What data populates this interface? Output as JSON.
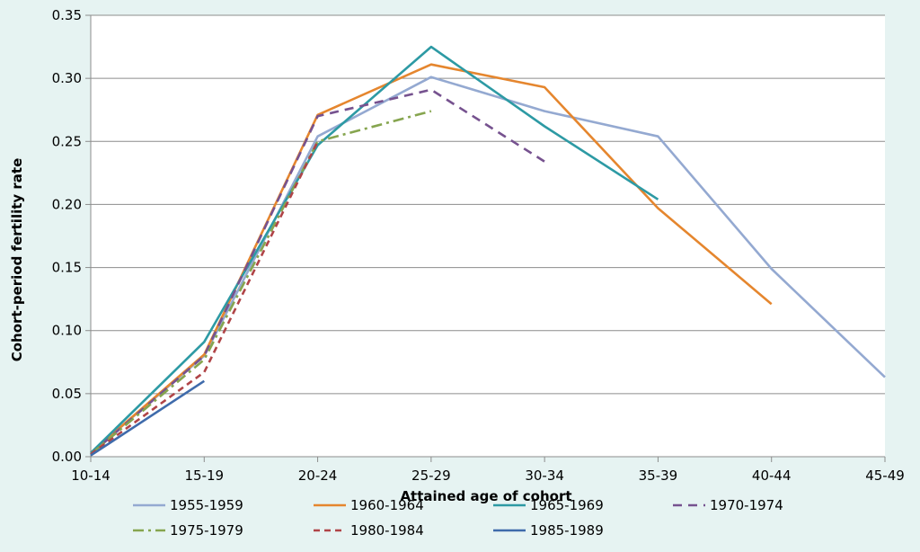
{
  "chart_data": {
    "type": "line",
    "xlabel": "Attained age of cohort",
    "ylabel": "Cohort-period fertility rate",
    "categories": [
      "10-14",
      "15-19",
      "20-24",
      "25-29",
      "30-34",
      "35-39",
      "40-44",
      "45-49"
    ],
    "ylim": [
      0,
      0.35
    ],
    "yticks": [
      "0.00",
      "0.05",
      "0.10",
      "0.15",
      "0.20",
      "0.25",
      "0.30",
      "0.35"
    ],
    "grid": "horizontal",
    "legend_position": "bottom",
    "series": [
      {
        "name": "1955-1959",
        "color": "#94a9d1",
        "dash": "solid",
        "values": [
          0.003,
          0.08,
          0.254,
          0.301,
          0.274,
          0.254,
          0.149,
          0.063
        ]
      },
      {
        "name": "1960-1964",
        "color": "#e5862e",
        "dash": "solid",
        "values": [
          0.003,
          0.081,
          0.271,
          0.311,
          0.293,
          0.197,
          0.121,
          null
        ]
      },
      {
        "name": "1965-1969",
        "color": "#2d9aa4",
        "dash": "solid",
        "values": [
          0.003,
          0.091,
          0.247,
          0.325,
          0.262,
          0.204,
          null,
          null
        ]
      },
      {
        "name": "1970-1974",
        "color": "#76528f",
        "dash": "dash",
        "values": [
          0.002,
          0.08,
          0.27,
          0.291,
          0.234,
          null,
          null,
          null
        ]
      },
      {
        "name": "1975-1979",
        "color": "#86a54f",
        "dash": "dashdot",
        "values": [
          0.002,
          0.077,
          0.25,
          0.274,
          null,
          null,
          null,
          null
        ]
      },
      {
        "name": "1980-1984",
        "color": "#b04447",
        "dash": "dash-short",
        "values": [
          0.002,
          0.067,
          0.25,
          null,
          null,
          null,
          null,
          null
        ]
      },
      {
        "name": "1985-1989",
        "color": "#3f6bab",
        "dash": "solid",
        "values": [
          0.001,
          0.06,
          null,
          null,
          null,
          null,
          null,
          null
        ]
      }
    ]
  }
}
